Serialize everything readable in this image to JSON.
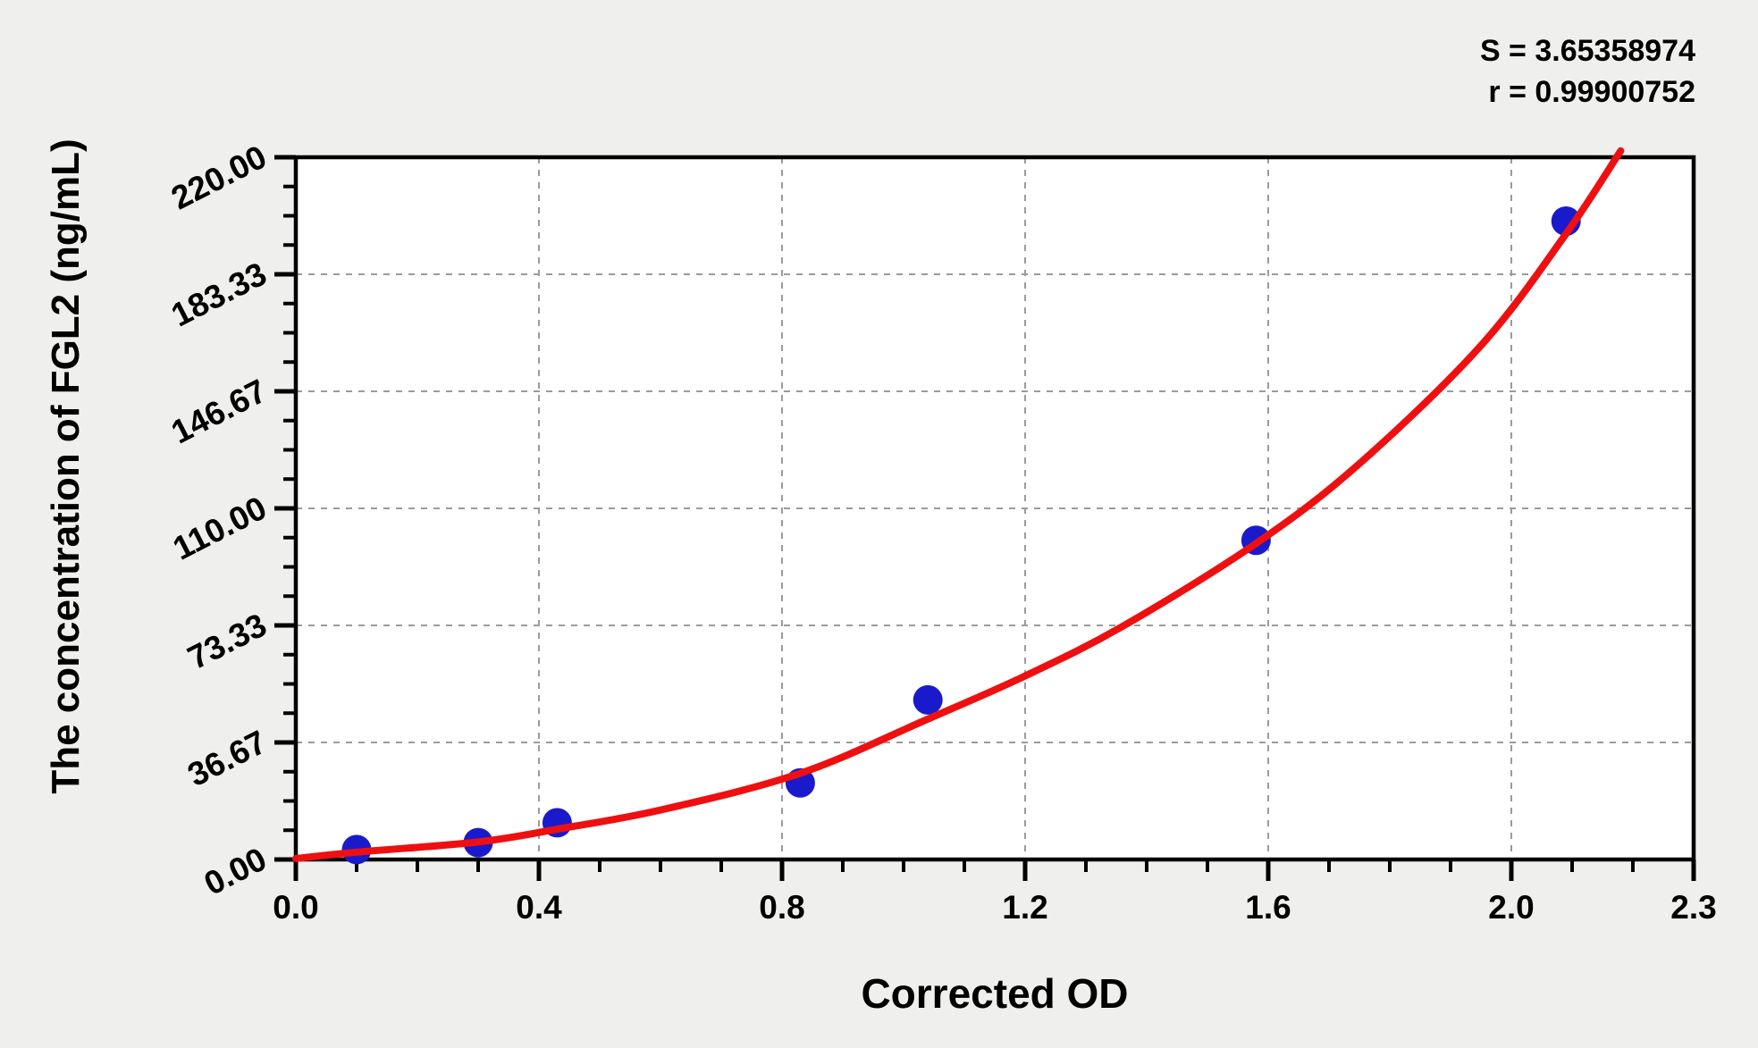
{
  "chart_data": {
    "type": "scatter",
    "xlabel": "Corrected OD",
    "ylabel": "The concentration of FGL2 (ng/mL)",
    "xlim": [
      0,
      2.3
    ],
    "ylim": [
      0,
      220
    ],
    "x_major_ticks": [
      {
        "value": 0.0,
        "label": "0.0"
      },
      {
        "value": 0.4,
        "label": "0.4"
      },
      {
        "value": 0.8,
        "label": "0.8"
      },
      {
        "value": 1.2,
        "label": "1.2"
      },
      {
        "value": 1.6,
        "label": "1.6"
      },
      {
        "value": 2.0,
        "label": "2.0"
      },
      {
        "value": 2.3,
        "label": "2.3"
      }
    ],
    "x_minor_tick_step": 0.1,
    "y_major_ticks": [
      {
        "value": 0.0,
        "label": "0.00"
      },
      {
        "value": 36.667,
        "label": "36.67"
      },
      {
        "value": 73.333,
        "label": "73.33"
      },
      {
        "value": 110.0,
        "label": "110.00"
      },
      {
        "value": 146.667,
        "label": "146.67"
      },
      {
        "value": 183.333,
        "label": "183.33"
      },
      {
        "value": 220.0,
        "label": "220.00"
      }
    ],
    "y_minor_ticks_per_interval": 3,
    "grid": {
      "visible": true,
      "style": "dashed",
      "at_major_ticks_only": true
    },
    "series": [
      {
        "name": "standard-points",
        "type": "scatter",
        "points": [
          {
            "od": 0.1,
            "conc": 3.1
          },
          {
            "od": 0.3,
            "conc": 5.3
          },
          {
            "od": 0.43,
            "conc": 11.5
          },
          {
            "od": 0.83,
            "conc": 24.0
          },
          {
            "od": 1.04,
            "conc": 50.0
          },
          {
            "od": 1.58,
            "conc": 100.0
          },
          {
            "od": 2.09,
            "conc": 200.0
          }
        ]
      },
      {
        "name": "fitted-curve",
        "type": "line",
        "points": [
          [
            0.0,
            0.3
          ],
          [
            0.107,
            2.4
          ],
          [
            0.3,
            5.5
          ],
          [
            0.43,
            9.5
          ],
          [
            0.6,
            15.5
          ],
          [
            0.83,
            27.0
          ],
          [
            1.04,
            44.0
          ],
          [
            1.2,
            57.5
          ],
          [
            1.36,
            73.0
          ],
          [
            1.58,
            99.0
          ],
          [
            1.75,
            124.0
          ],
          [
            1.95,
            161.0
          ],
          [
            2.09,
            196.0
          ],
          [
            2.18,
            222.0
          ]
        ]
      }
    ],
    "stats": {
      "s_line": "S = 3.65358974",
      "r_line": "r = 0.99900752",
      "S": 3.65358974,
      "r": 0.99900752
    },
    "colors": {
      "curve": "#ee1010",
      "points": "#1a1acd",
      "grid": "#9b9b9b",
      "axis": "#000000",
      "plot_background": "#ffffff",
      "page_background": "#efefed"
    }
  }
}
